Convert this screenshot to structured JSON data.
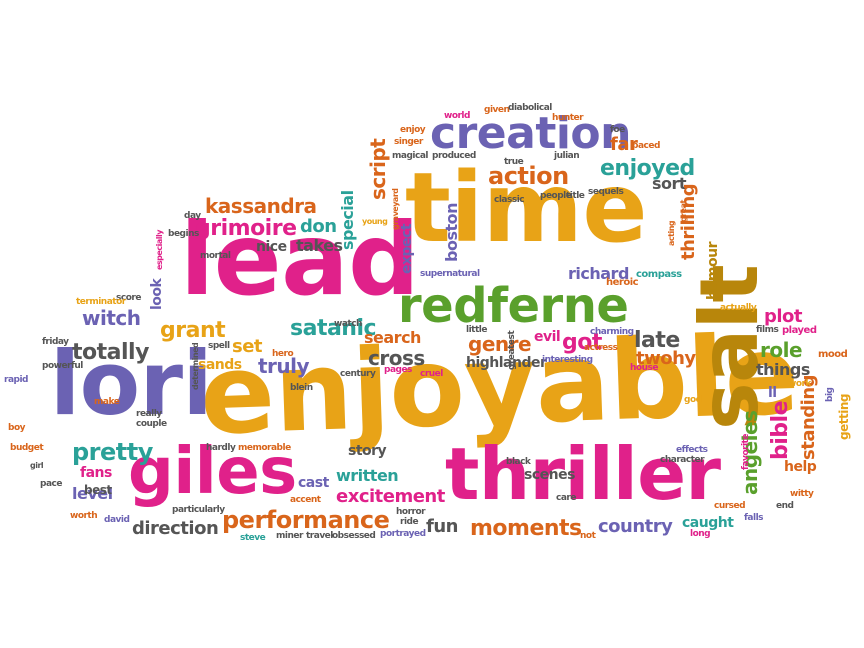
{
  "colors": {
    "pink": "#e0218a",
    "yellow": "#e8a317",
    "purple": "#6b62b3",
    "green": "#5aa02c",
    "orange": "#d9651b",
    "gray": "#555555",
    "teal": "#2aa198",
    "olive": "#b8860b"
  },
  "words": [
    {
      "text": "enjoyable",
      "color": "yellow"
    },
    {
      "text": "lead",
      "color": "pink"
    },
    {
      "text": "time",
      "color": "yellow"
    },
    {
      "text": "lori",
      "color": "purple"
    },
    {
      "text": "salt",
      "color": "olive"
    },
    {
      "text": "thriller",
      "color": "pink"
    },
    {
      "text": "giles",
      "color": "pink"
    },
    {
      "text": "redferne",
      "color": "green"
    },
    {
      "text": "creation",
      "color": "purple"
    },
    {
      "text": "action",
      "color": "orange"
    },
    {
      "text": "enjoyed",
      "color": "teal"
    },
    {
      "text": "performance",
      "color": "orange"
    },
    {
      "text": "moments",
      "color": "orange"
    },
    {
      "text": "excitement",
      "color": "pink"
    },
    {
      "text": "pretty",
      "color": "teal"
    },
    {
      "text": "totally",
      "color": "gray"
    },
    {
      "text": "grimoire",
      "color": "pink"
    },
    {
      "text": "kassandra",
      "color": "orange"
    },
    {
      "text": "witch",
      "color": "purple"
    },
    {
      "text": "satanic",
      "color": "teal"
    },
    {
      "text": "grant",
      "color": "yellow"
    },
    {
      "text": "truly",
      "color": "purple"
    },
    {
      "text": "cross",
      "color": "gray"
    },
    {
      "text": "genre",
      "color": "orange"
    },
    {
      "text": "got",
      "color": "pink"
    },
    {
      "text": "late",
      "color": "gray"
    },
    {
      "text": "twohy",
      "color": "orange"
    },
    {
      "text": "role",
      "color": "green"
    },
    {
      "text": "plot",
      "color": "pink"
    },
    {
      "text": "bible",
      "color": "pink"
    },
    {
      "text": "standing",
      "color": "orange"
    },
    {
      "text": "things",
      "color": "gray"
    },
    {
      "text": "angeles",
      "color": "green"
    },
    {
      "text": "country",
      "color": "purple"
    },
    {
      "text": "caught",
      "color": "teal"
    },
    {
      "text": "fun",
      "color": "gray"
    },
    {
      "text": "direction",
      "color": "gray"
    },
    {
      "text": "level",
      "color": "purple"
    },
    {
      "text": "written",
      "color": "teal"
    },
    {
      "text": "cast",
      "color": "purple"
    },
    {
      "text": "fans",
      "color": "pink"
    },
    {
      "text": "best",
      "color": "gray"
    },
    {
      "text": "story",
      "color": "gray"
    },
    {
      "text": "scenes",
      "color": "gray"
    },
    {
      "text": "script",
      "color": "orange"
    },
    {
      "text": "special",
      "color": "teal"
    },
    {
      "text": "don",
      "color": "teal"
    },
    {
      "text": "takes",
      "color": "gray"
    },
    {
      "text": "nice",
      "color": "gray"
    },
    {
      "text": "sort",
      "color": "gray"
    },
    {
      "text": "thrilling",
      "color": "orange"
    },
    {
      "text": "far",
      "color": "orange"
    },
    {
      "text": "boston",
      "color": "purple"
    },
    {
      "text": "expect",
      "color": "purple"
    },
    {
      "text": "richard",
      "color": "purple"
    },
    {
      "text": "search",
      "color": "orange"
    },
    {
      "text": "set",
      "color": "yellow"
    },
    {
      "text": "sands",
      "color": "yellow"
    },
    {
      "text": "highlander",
      "color": "gray"
    },
    {
      "text": "evil",
      "color": "pink"
    },
    {
      "text": "look",
      "color": "purple"
    },
    {
      "text": "humour",
      "color": "olive"
    },
    {
      "text": "help",
      "color": "orange"
    },
    {
      "text": "ll",
      "color": "purple"
    },
    {
      "text": "getting",
      "color": "yellow"
    },
    {
      "text": "supernatural",
      "color": "purple"
    },
    {
      "text": "heroic",
      "color": "orange"
    },
    {
      "text": "compass",
      "color": "teal"
    },
    {
      "text": "actually",
      "color": "yellow"
    },
    {
      "text": "played",
      "color": "pink"
    },
    {
      "text": "films",
      "color": "gray"
    },
    {
      "text": "mood",
      "color": "orange"
    },
    {
      "text": "work",
      "color": "yellow"
    },
    {
      "text": "big",
      "color": "purple"
    },
    {
      "text": "witty",
      "color": "orange"
    },
    {
      "text": "end",
      "color": "gray"
    },
    {
      "text": "falls",
      "color": "purple"
    },
    {
      "text": "cursed",
      "color": "orange"
    },
    {
      "text": "long",
      "color": "pink"
    },
    {
      "text": "not",
      "color": "orange"
    },
    {
      "text": "care",
      "color": "gray"
    },
    {
      "text": "black",
      "color": "gray"
    },
    {
      "text": "ride",
      "color": "gray"
    },
    {
      "text": "portrayed",
      "color": "purple"
    },
    {
      "text": "obsessed",
      "color": "gray"
    },
    {
      "text": "travel",
      "color": "gray"
    },
    {
      "text": "miner",
      "color": "gray"
    },
    {
      "text": "steve",
      "color": "teal"
    },
    {
      "text": "david",
      "color": "purple"
    },
    {
      "text": "worth",
      "color": "orange"
    },
    {
      "text": "pace",
      "color": "gray"
    },
    {
      "text": "particularly",
      "color": "gray"
    },
    {
      "text": "accent",
      "color": "orange"
    },
    {
      "text": "horror",
      "color": "gray"
    },
    {
      "text": "hardly",
      "color": "gray"
    },
    {
      "text": "memorable",
      "color": "orange"
    },
    {
      "text": "effects",
      "color": "purple"
    },
    {
      "text": "character",
      "color": "gray"
    },
    {
      "text": "favorite",
      "color": "pink"
    },
    {
      "text": "god",
      "color": "yellow"
    },
    {
      "text": "house",
      "color": "pink"
    },
    {
      "text": "interesting",
      "color": "purple"
    },
    {
      "text": "actress",
      "color": "orange"
    },
    {
      "text": "charming",
      "color": "purple"
    },
    {
      "text": "greatest",
      "color": "gray"
    },
    {
      "text": "little",
      "color": "gray"
    },
    {
      "text": "cruel",
      "color": "pink"
    },
    {
      "text": "pages",
      "color": "pink"
    },
    {
      "text": "century",
      "color": "gray"
    },
    {
      "text": "blein",
      "color": "gray"
    },
    {
      "text": "hero",
      "color": "orange"
    },
    {
      "text": "spell",
      "color": "gray"
    },
    {
      "text": "watch",
      "color": "gray"
    },
    {
      "text": "determined",
      "color": "gray"
    },
    {
      "text": "powerful",
      "color": "gray"
    },
    {
      "text": "friday",
      "color": "gray"
    },
    {
      "text": "score",
      "color": "gray"
    },
    {
      "text": "terminator",
      "color": "yellow"
    },
    {
      "text": "rapid",
      "color": "purple"
    },
    {
      "text": "boy",
      "color": "orange"
    },
    {
      "text": "budget",
      "color": "orange"
    },
    {
      "text": "girl",
      "color": "gray"
    },
    {
      "text": "make",
      "color": "orange"
    },
    {
      "text": "really",
      "color": "gray"
    },
    {
      "text": "couple",
      "color": "gray"
    },
    {
      "text": "mortal",
      "color": "gray"
    },
    {
      "text": "begins",
      "color": "gray"
    },
    {
      "text": "especially",
      "color": "pink"
    },
    {
      "text": "day",
      "color": "gray"
    },
    {
      "text": "young",
      "color": "yellow"
    },
    {
      "text": "graveyard",
      "color": "orange"
    },
    {
      "text": "classic",
      "color": "gray"
    },
    {
      "text": "people",
      "color": "gray"
    },
    {
      "text": "title",
      "color": "gray"
    },
    {
      "text": "sequels",
      "color": "gray"
    },
    {
      "text": "acting",
      "color": "orange"
    },
    {
      "text": "great",
      "color": "orange"
    },
    {
      "text": "julian",
      "color": "gray"
    },
    {
      "text": "true",
      "color": "gray"
    },
    {
      "text": "produced",
      "color": "gray"
    },
    {
      "text": "magical",
      "color": "gray"
    },
    {
      "text": "singer",
      "color": "orange"
    },
    {
      "text": "enjoy",
      "color": "orange"
    },
    {
      "text": "world",
      "color": "pink"
    },
    {
      "text": "given",
      "color": "orange"
    },
    {
      "text": "diabolical",
      "color": "gray"
    },
    {
      "text": "hunter",
      "color": "orange"
    },
    {
      "text": "foe",
      "color": "gray"
    },
    {
      "text": "paced",
      "color": "orange"
    }
  ]
}
